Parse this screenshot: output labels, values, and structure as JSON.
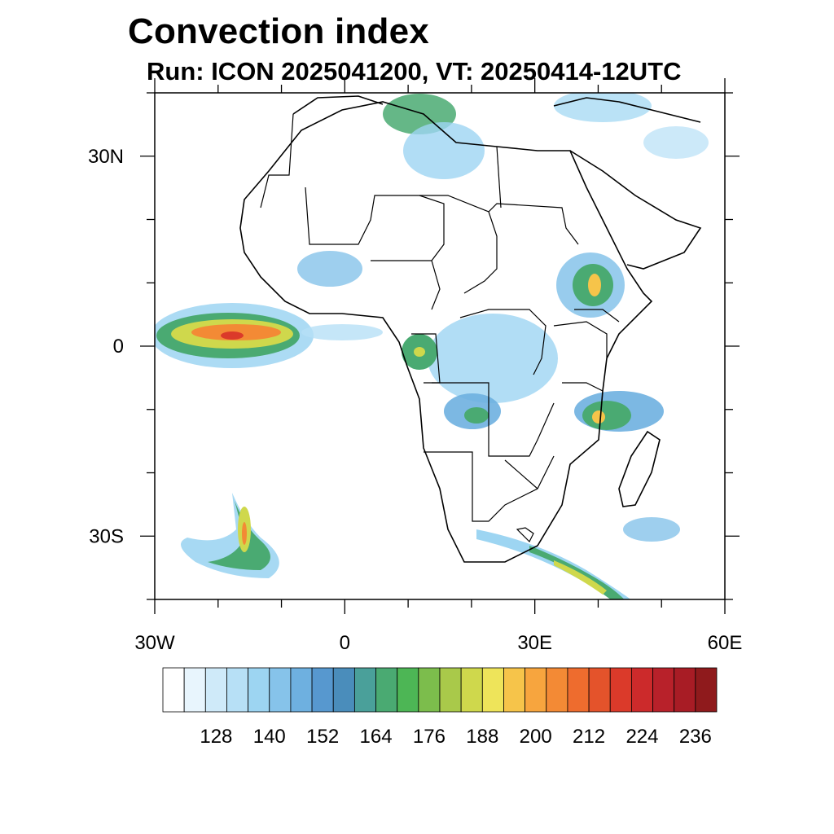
{
  "title": "Convection index",
  "subtitle": "Run: ICON 2025041200,  VT: 20250414-12UTC",
  "axes": {
    "lon_ticks": [
      {
        "value": -30,
        "label": "30W"
      },
      {
        "value": 0,
        "label": "0"
      },
      {
        "value": 30,
        "label": "30E"
      },
      {
        "value": 60,
        "label": "60E"
      }
    ],
    "lat_ticks": [
      {
        "value": 30,
        "label": "30N"
      },
      {
        "value": 0,
        "label": "0"
      },
      {
        "value": -30,
        "label": "30S"
      }
    ],
    "lon_range": [
      -30,
      60
    ],
    "lat_range": [
      -40,
      40
    ]
  },
  "colorbar": {
    "colors": [
      "#ffffff",
      "#e8f5fd",
      "#cfeaf9",
      "#b7e0f6",
      "#9dd5f2",
      "#86c3ea",
      "#6eb0e0",
      "#5798cf",
      "#4a8dbb",
      "#4aa09a",
      "#4aaa72",
      "#4db655",
      "#7cbd4c",
      "#a9c94a",
      "#cfd84c",
      "#eee45a",
      "#f6c44a",
      "#f7a53e",
      "#f38a35",
      "#ee6c2e",
      "#e4532b",
      "#db3a2a",
      "#cc2a2b",
      "#b8212a",
      "#a81c25",
      "#8f1a1c"
    ],
    "labels": [
      {
        "index": 2,
        "label": "128"
      },
      {
        "index": 5,
        "label": "140"
      },
      {
        "index": 8,
        "label": "152"
      },
      {
        "index": 11,
        "label": "164"
      },
      {
        "index": 14,
        "label": "176"
      },
      {
        "index": 17,
        "label": "188"
      },
      {
        "index": 20,
        "label": "200"
      },
      {
        "index": 23,
        "label": "212"
      },
      {
        "index": 26,
        "label": "224"
      },
      {
        "index": 29,
        "label": "236"
      }
    ]
  }
}
